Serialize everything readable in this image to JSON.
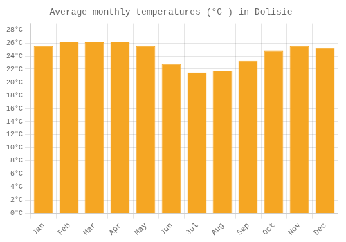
{
  "chart_data": {
    "type": "bar",
    "title": "Average monthly temperatures (°C ) in Dolisie",
    "categories": [
      "Jan",
      "Feb",
      "Mar",
      "Apr",
      "May",
      "Jun",
      "Jul",
      "Aug",
      "Sep",
      "Oct",
      "Nov",
      "Dec"
    ],
    "values": [
      25.5,
      26.1,
      26.1,
      26.1,
      25.5,
      22.8,
      21.5,
      21.8,
      23.3,
      24.8,
      25.5,
      25.2
    ],
    "color": "#F5A623",
    "ylim": [
      0,
      29
    ],
    "yticks": [
      {
        "value": 0,
        "label": "0°C"
      },
      {
        "value": 2,
        "label": "2°C"
      },
      {
        "value": 4,
        "label": "4°C"
      },
      {
        "value": 6,
        "label": "6°C"
      },
      {
        "value": 8,
        "label": "8°C"
      },
      {
        "value": 10,
        "label": "10°C"
      },
      {
        "value": 12,
        "label": "12°C"
      },
      {
        "value": 14,
        "label": "14°C"
      },
      {
        "value": 16,
        "label": "16°C"
      },
      {
        "value": 18,
        "label": "18°C"
      },
      {
        "value": 20,
        "label": "20°C"
      },
      {
        "value": 22,
        "label": "22°C"
      },
      {
        "value": 24,
        "label": "24°C"
      },
      {
        "value": 26,
        "label": "26°C"
      },
      {
        "value": 28,
        "label": "28°C"
      }
    ],
    "grid": true
  }
}
